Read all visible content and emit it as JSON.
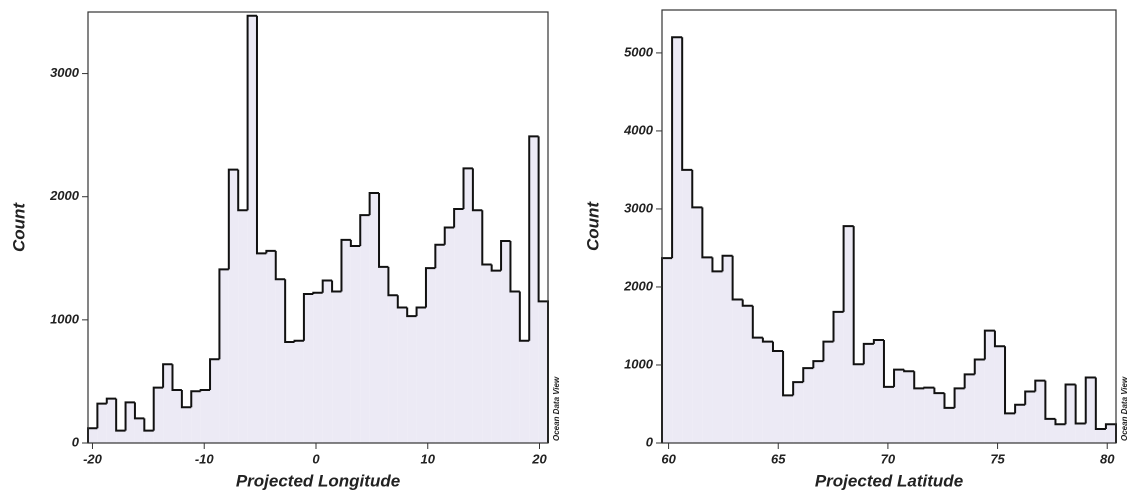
{
  "chart_data": [
    {
      "type": "histogram",
      "xlabel": "Projected Longitude",
      "ylabel": "Count",
      "watermark": "Ocean Data View",
      "bins": [
        -20.4,
        -19.56,
        -18.72,
        -17.88,
        -17.04,
        -16.2,
        -15.36,
        -14.52,
        -13.68,
        -12.84,
        -12.0,
        -11.16,
        -10.32,
        -9.48,
        -8.64,
        -7.8,
        -6.96,
        -6.12,
        -5.28,
        -4.44,
        -3.6,
        -2.76,
        -1.92,
        -1.08,
        -0.24,
        0.6,
        1.44,
        2.28,
        3.12,
        3.96,
        4.8,
        5.64,
        6.48,
        7.32,
        8.16,
        9.0,
        9.84,
        10.68,
        11.52,
        12.36,
        13.2,
        14.04,
        14.88,
        15.72,
        16.56,
        17.4,
        18.24,
        19.08,
        19.92,
        20.76
      ],
      "values": [
        120,
        320,
        360,
        100,
        330,
        200,
        100,
        450,
        640,
        430,
        290,
        420,
        430,
        680,
        1410,
        2220,
        1890,
        3470,
        1540,
        1560,
        1330,
        820,
        830,
        1210,
        1220,
        1320,
        1230,
        1650,
        1600,
        1850,
        2030,
        1430,
        1200,
        1100,
        1030,
        1100,
        1420,
        1610,
        1750,
        1900,
        2230,
        1890,
        1450,
        1400,
        1640,
        1230,
        830,
        2490,
        1150
      ],
      "color": "#eceaf5",
      "xlim": [
        -20.4,
        20.76
      ],
      "ylim": [
        0,
        3500
      ],
      "xticks": [
        -20,
        -10,
        0,
        10,
        20
      ],
      "yticks": [
        0,
        1000,
        2000,
        3000
      ]
    },
    {
      "type": "histogram",
      "xlabel": "Projected Latitude",
      "ylabel": "Count",
      "watermark": "Ocean Data View",
      "bins": [
        59.7,
        60.16,
        60.62,
        61.08,
        61.54,
        62.0,
        62.46,
        62.92,
        63.38,
        63.84,
        64.3,
        64.76,
        65.22,
        65.68,
        66.14,
        66.6,
        67.06,
        67.52,
        67.98,
        68.44,
        68.9,
        69.36,
        69.82,
        70.28,
        70.74,
        71.2,
        71.66,
        72.12,
        72.58,
        73.04,
        73.5,
        73.96,
        74.42,
        74.88,
        75.34,
        75.8,
        76.26,
        76.72,
        77.18,
        77.64,
        78.1,
        78.56,
        79.02,
        79.48,
        79.94,
        80.4
      ],
      "values": [
        2370,
        5200,
        3500,
        3020,
        2380,
        2200,
        2400,
        1840,
        1760,
        1350,
        1300,
        1180,
        610,
        780,
        960,
        1050,
        1300,
        1680,
        2780,
        1010,
        1270,
        1320,
        720,
        940,
        920,
        700,
        710,
        640,
        450,
        700,
        880,
        1070,
        1440,
        1240,
        380,
        490,
        660,
        800,
        310,
        240,
        750,
        250,
        840,
        180,
        240
      ],
      "color": "#eceaf5",
      "xlim": [
        59.7,
        80.4
      ],
      "ylim": [
        0,
        5550
      ],
      "xticks": [
        60,
        65,
        70,
        75,
        80
      ],
      "yticks": [
        0,
        1000,
        2000,
        3000,
        4000,
        5000
      ]
    }
  ]
}
